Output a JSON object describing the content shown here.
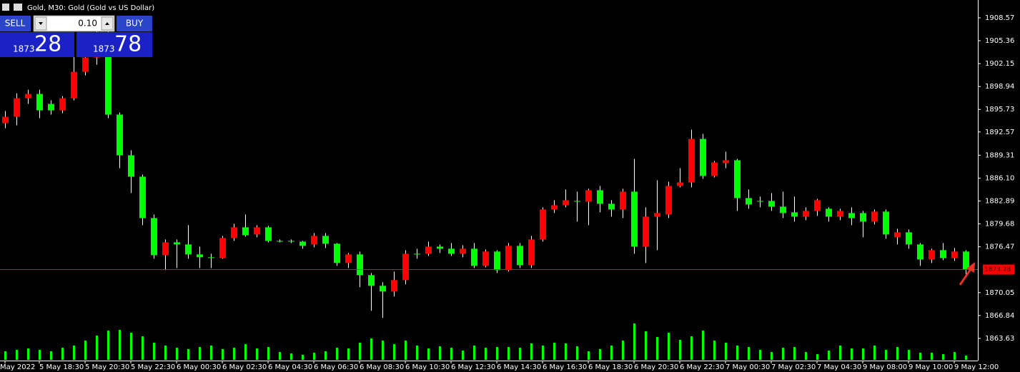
{
  "header": {
    "title": "Gold, M30:  Gold (Gold vs US Dollar)"
  },
  "trade_panel": {
    "sell": "SELL",
    "buy": "BUY",
    "lot": "0.10",
    "sell_price_handle": "1873",
    "sell_price_pips": "28",
    "buy_price_handle": "1873",
    "buy_price_pips": "78"
  },
  "chart_data": {
    "type": "candlestick",
    "categories": [
      "May 2022",
      null,
      null,
      "5 May 18:30",
      null,
      null,
      null,
      "5 May 20:30",
      null,
      null,
      null,
      "5 May 22:30",
      null,
      null,
      null,
      "6 May 00:30",
      null,
      null,
      null,
      "6 May 02:30",
      null,
      null,
      null,
      "6 May 04:30",
      null,
      null,
      null,
      "6 May 06:30",
      null,
      null,
      null,
      "6 May 08:30",
      null,
      null,
      null,
      "6 May 10:30",
      null,
      null,
      null,
      "6 May 12:30",
      null,
      null,
      null,
      "6 May 14:30",
      null,
      null,
      null,
      "6 May 16:30",
      null,
      null,
      null,
      "6 May 18:30",
      null,
      null,
      null,
      "6 May 20:30",
      null,
      null,
      null,
      "6 May 22:30",
      null,
      null,
      null,
      "7 May 00:30",
      null,
      null,
      null,
      "7 May 02:30",
      null,
      null,
      null,
      "7 May 04:30",
      null,
      null,
      null,
      "9 May 08:00",
      null,
      null,
      null,
      "9 May 10:00",
      null,
      null,
      null,
      "9 May 12:00",
      null
    ],
    "open": [
      1893.8,
      1894.7,
      1897.3,
      1897.9,
      1896.5,
      1895.6,
      1897.3,
      1901,
      1903,
      1906,
      1895,
      1889.3,
      1886.3,
      1880.5,
      1875.3,
      1877.1,
      1876.8,
      1875.4,
      1875,
      1874.9,
      1877.7,
      1879.2,
      1878.2,
      1879.2,
      1877.3,
      1877.3,
      1877.2,
      1876.8,
      1878,
      1876.9,
      1874.2,
      1875.4,
      1872.5,
      1871,
      1870.2,
      1871.8,
      1875.5,
      1875.5,
      1876.5,
      1876.2,
      1875.5,
      1876.2,
      1873.8,
      1875.8,
      1873.2,
      1876.6,
      1873.9,
      1877.5,
      1881.7,
      1882.3,
      1882.9,
      1882.8,
      1884.4,
      1882.5,
      1881.7,
      1884.2,
      1876.5,
      1880.7,
      1881,
      1885,
      1885.5,
      1891.6,
      1886.4,
      1888.2,
      1888.6,
      1883.3,
      1882.9,
      1882.9,
      1882.1,
      1881.3,
      1880.7,
      1881.5,
      1881.8,
      1880.7,
      1881.2,
      1881.2,
      1880,
      1881.4,
      1877.8,
      1878.5,
      1876.8,
      1874.7,
      1876,
      1874.9,
      1875.8
    ],
    "high": [
      1895.5,
      1898,
      1898.5,
      1898.5,
      1897,
      1897.6,
      1903.5,
      1904,
      1907,
      1907,
      1895.3,
      1890,
      1886.6,
      1881,
      1877.5,
      1877.5,
      1879.5,
      1876.5,
      1875.5,
      1878,
      1879.7,
      1881,
      1879.5,
      1879.4,
      1877.5,
      1877.5,
      1877.3,
      1878.4,
      1878.4,
      1877,
      1875.6,
      1875.8,
      1872.8,
      1871.5,
      1873,
      1876,
      1876.2,
      1877.2,
      1876.8,
      1877,
      1876.7,
      1877,
      1876.1,
      1876,
      1877,
      1877,
      1878,
      1882,
      1883,
      1884.5,
      1884.2,
      1884.6,
      1885,
      1883,
      1884.6,
      1888.8,
      1882,
      1885.8,
      1885.6,
      1887.5,
      1892.9,
      1892.3,
      1888.5,
      1889.8,
      1888.8,
      1884.5,
      1883.5,
      1884,
      1884.2,
      1883.5,
      1882,
      1883.2,
      1882,
      1881.8,
      1882,
      1881.5,
      1881.7,
      1881.7,
      1879,
      1878.9,
      1877,
      1876.2,
      1877,
      1876.3,
      1876
    ],
    "low": [
      1893.1,
      1893.5,
      1896.5,
      1894.5,
      1895,
      1895.2,
      1897,
      1900.5,
      1902,
      1894.5,
      1887.5,
      1884,
      1879.5,
      1874.8,
      1873.2,
      1873.5,
      1874.8,
      1873.5,
      1873.5,
      1874.8,
      1877.3,
      1877.9,
      1877.8,
      1877.1,
      1877.1,
      1877,
      1876.2,
      1876.4,
      1876.3,
      1873.8,
      1873.5,
      1870.8,
      1867.5,
      1866.5,
      1869.5,
      1871.2,
      1874.8,
      1875.2,
      1875.6,
      1875.2,
      1875,
      1873.5,
      1873.6,
      1872.8,
      1873,
      1873.5,
      1873.5,
      1877.2,
      1881.2,
      1882,
      1880,
      1879.5,
      1881.3,
      1880.7,
      1880.5,
      1875.5,
      1874.2,
      1876,
      1880.5,
      1884.8,
      1884.8,
      1886,
      1886.2,
      1887.5,
      1881.5,
      1881.8,
      1882,
      1881.5,
      1880.5,
      1880,
      1880.2,
      1880.8,
      1880,
      1880.2,
      1879.5,
      1877.8,
      1879.6,
      1877.6,
      1876.8,
      1876.2,
      1873.8,
      1874.2,
      1874.6,
      1874.5,
      1872.3
    ],
    "close": [
      1894.7,
      1897.3,
      1897.9,
      1895.6,
      1895.6,
      1897.3,
      1901,
      1903,
      1906,
      1895,
      1889.3,
      1886.3,
      1880.5,
      1875.3,
      1877.1,
      1876.8,
      1875.4,
      1875,
      1874.9,
      1877.7,
      1879.2,
      1878.1,
      1879.2,
      1877.3,
      1877.3,
      1877.2,
      1876.6,
      1878,
      1876.9,
      1874.2,
      1875.4,
      1872.5,
      1871,
      1870.2,
      1871.8,
      1875.5,
      1875.4,
      1876.5,
      1876.2,
      1875.5,
      1876.2,
      1873.8,
      1875.8,
      1873.2,
      1876.6,
      1873.9,
      1877.5,
      1881.7,
      1882.3,
      1883,
      1882.8,
      1884.4,
      1882.5,
      1881.7,
      1884.2,
      1876.5,
      1880.7,
      1881.2,
      1885,
      1885.5,
      1891.6,
      1886.4,
      1888.3,
      1888.6,
      1883.3,
      1882.4,
      1882.8,
      1882.1,
      1881.2,
      1880.7,
      1881.5,
      1883,
      1880.7,
      1881.5,
      1880.5,
      1880,
      1881.4,
      1878.2,
      1878.5,
      1876.8,
      1874.7,
      1876,
      1874.9,
      1875.8,
      1873.3
    ],
    "volumes": [
      12,
      14,
      16,
      14,
      12,
      17,
      20,
      27,
      34,
      41,
      42,
      38,
      33,
      24,
      20,
      17,
      15,
      18,
      20,
      15,
      17,
      22,
      16,
      18,
      11,
      9,
      7,
      10,
      12,
      17,
      16,
      24,
      30,
      27,
      22,
      27,
      20,
      16,
      19,
      17,
      13,
      20,
      17,
      18,
      18,
      17,
      23,
      20,
      24,
      23,
      19,
      12,
      15,
      20,
      27,
      51,
      40,
      32,
      38,
      28,
      33,
      41,
      27,
      24,
      20,
      18,
      14,
      11,
      17,
      18,
      11,
      8,
      13,
      20,
      16,
      16,
      20,
      14,
      18,
      14,
      10,
      10,
      8,
      11,
      6
    ],
    "ylim": [
      1861.32,
      1911.07
    ],
    "yticks": [
      1908.57,
      1905.36,
      1902.15,
      1898.94,
      1895.73,
      1892.57,
      1889.31,
      {
        "value": 1886.1,
        "label": "1886.10"
      },
      1882.89,
      1879.68,
      1876.47,
      1870.05,
      1866.84,
      1863.63
    ],
    "current_price": 1873.28,
    "current_price_color": "#ff0000",
    "up_color": "#ff0000",
    "down_color": "#00ff00",
    "wick_color": "#ffffff",
    "volume_color": "#00ff00"
  }
}
